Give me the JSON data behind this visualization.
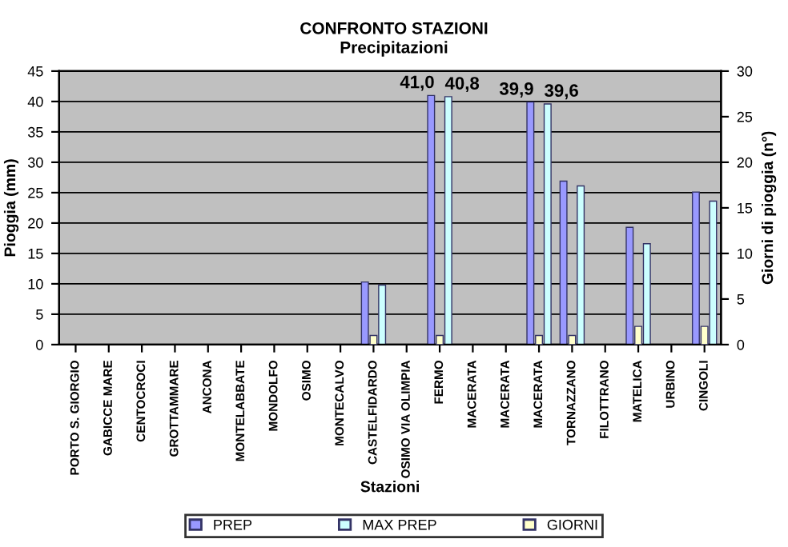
{
  "chart_data": {
    "type": "bar",
    "title": "CONFRONTO STAZIONI",
    "subtitle": "Precipitazioni",
    "xlabel": "Stazioni",
    "ylabel": "Pioggia (mm)",
    "y2label": "Giorni di pioggia (n°)",
    "categories": [
      "PORTO S. GIORGIO",
      "GABICCE MARE",
      "CENTOCROCI",
      "GROTTAMMARE",
      "ANCONA",
      "MONTELABBATE",
      "MONDOLFO",
      "OSIMO",
      "MONTECALVO",
      "CASTELFIDARDO",
      "OSIMO VIA OLIMPIA",
      "FERMO",
      "MACERATA",
      "MACERATA",
      "MACERATA",
      "TORNAZZANO",
      "FILOTTRANO",
      "MATELICA",
      "URBINO",
      "CINGOLI"
    ],
    "series": [
      {
        "name": "PREP",
        "color": "#9999ff",
        "values": [
          null,
          null,
          null,
          null,
          null,
          null,
          null,
          null,
          null,
          10.3,
          null,
          41.0,
          null,
          null,
          39.9,
          26.9,
          null,
          19.3,
          null,
          25.1
        ],
        "value_labels": [
          null,
          null,
          null,
          null,
          null,
          null,
          null,
          null,
          null,
          null,
          null,
          "41,0",
          null,
          null,
          "39,9",
          null,
          null,
          null,
          null,
          null
        ]
      },
      {
        "name": "MAX PREP",
        "color": "#ccffff",
        "values": [
          null,
          null,
          null,
          null,
          null,
          null,
          null,
          null,
          null,
          9.8,
          null,
          40.8,
          null,
          null,
          39.6,
          26.1,
          null,
          16.6,
          null,
          23.6
        ],
        "value_labels": [
          null,
          null,
          null,
          null,
          null,
          null,
          null,
          null,
          null,
          null,
          null,
          "40,8",
          null,
          null,
          "39,6",
          null,
          null,
          null,
          null,
          null
        ]
      },
      {
        "name": "GIORNI",
        "color": "#ffffcc",
        "axis": "y2",
        "values": [
          null,
          null,
          null,
          null,
          null,
          null,
          null,
          null,
          null,
          1,
          null,
          1,
          null,
          null,
          1,
          1,
          null,
          2,
          null,
          2
        ]
      }
    ],
    "ylim": [
      0,
      45
    ],
    "yticks": [
      0,
      5,
      10,
      15,
      20,
      25,
      30,
      35,
      40,
      45
    ],
    "y2lim": [
      0,
      30
    ],
    "y2ticks": [
      0,
      5,
      10,
      15,
      20,
      25,
      30
    ],
    "grid": "y",
    "legend": "bottom"
  }
}
